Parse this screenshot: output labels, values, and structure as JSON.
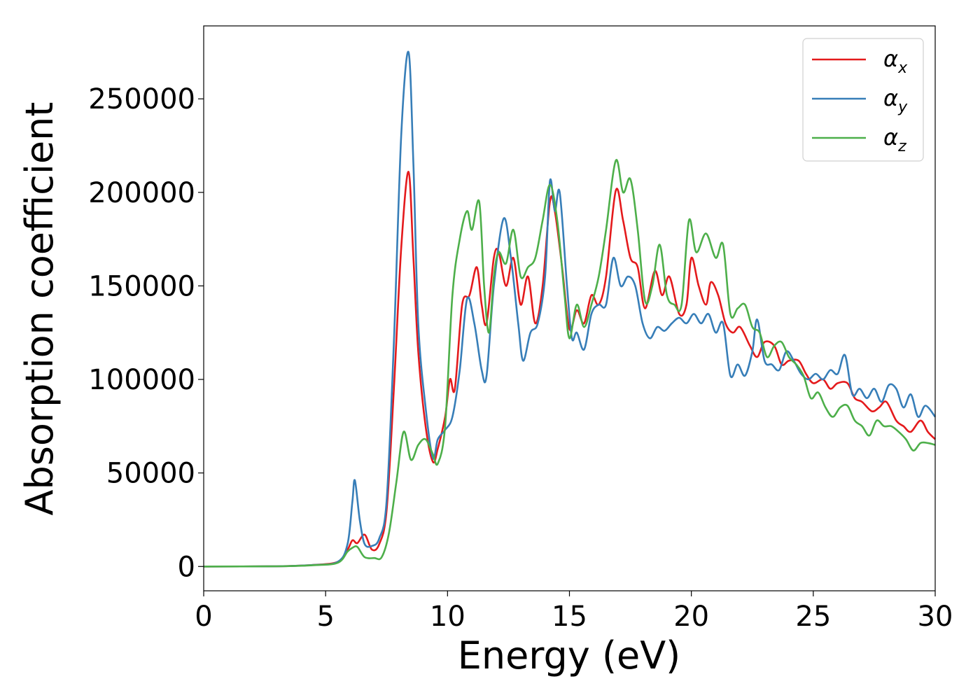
{
  "chart_data": {
    "type": "line",
    "title": "",
    "xlabel": "Energy (eV)",
    "ylabel": "Absorption coefficient",
    "xlim": [
      0,
      30
    ],
    "ylim": [
      -13000,
      289000
    ],
    "xticks": [
      0,
      5,
      10,
      15,
      20,
      25,
      30
    ],
    "yticks": [
      0,
      50000,
      100000,
      150000,
      200000,
      250000
    ],
    "ytick_labels": [
      "0",
      "50000",
      "100000",
      "150000",
      "200000",
      "250000"
    ],
    "xtick_labels": [
      "0",
      "5",
      "10",
      "15",
      "20",
      "25",
      "30"
    ],
    "grid": false,
    "legend_position": "top-right",
    "series": [
      {
        "name": "α",
        "subscript": "x",
        "color": "#e41a1c",
        "points": [
          [
            0,
            0
          ],
          [
            3,
            100
          ],
          [
            4.5,
            800
          ],
          [
            5.5,
            2500
          ],
          [
            5.9,
            9000
          ],
          [
            6.1,
            14000
          ],
          [
            6.3,
            12500
          ],
          [
            6.6,
            17000
          ],
          [
            6.9,
            9000
          ],
          [
            7.2,
            12000
          ],
          [
            7.5,
            30000
          ],
          [
            7.8,
            95000
          ],
          [
            8.1,
            170000
          ],
          [
            8.4,
            211000
          ],
          [
            8.6,
            165000
          ],
          [
            8.8,
            115000
          ],
          [
            9.1,
            75000
          ],
          [
            9.4,
            56000
          ],
          [
            9.6,
            63000
          ],
          [
            9.9,
            80000
          ],
          [
            10.1,
            100000
          ],
          [
            10.3,
            95000
          ],
          [
            10.6,
            140000
          ],
          [
            10.9,
            145000
          ],
          [
            11.2,
            160000
          ],
          [
            11.4,
            140000
          ],
          [
            11.6,
            130000
          ],
          [
            11.9,
            165000
          ],
          [
            12.1,
            168000
          ],
          [
            12.4,
            150000
          ],
          [
            12.7,
            165000
          ],
          [
            13.0,
            140000
          ],
          [
            13.3,
            155000
          ],
          [
            13.6,
            130000
          ],
          [
            13.9,
            150000
          ],
          [
            14.2,
            195000
          ],
          [
            14.4,
            190000
          ],
          [
            14.7,
            160000
          ],
          [
            15.0,
            127000
          ],
          [
            15.3,
            137000
          ],
          [
            15.6,
            130000
          ],
          [
            15.9,
            145000
          ],
          [
            16.2,
            140000
          ],
          [
            16.5,
            155000
          ],
          [
            16.9,
            201000
          ],
          [
            17.2,
            185000
          ],
          [
            17.5,
            165000
          ],
          [
            17.8,
            160000
          ],
          [
            18.1,
            138000
          ],
          [
            18.5,
            158000
          ],
          [
            18.8,
            145000
          ],
          [
            19.1,
            155000
          ],
          [
            19.5,
            135000
          ],
          [
            19.8,
            140000
          ],
          [
            20.0,
            165000
          ],
          [
            20.3,
            150000
          ],
          [
            20.6,
            140000
          ],
          [
            20.8,
            152000
          ],
          [
            21.1,
            145000
          ],
          [
            21.4,
            130000
          ],
          [
            21.7,
            125000
          ],
          [
            22.0,
            128000
          ],
          [
            22.4,
            118000
          ],
          [
            22.7,
            112000
          ],
          [
            23.0,
            120000
          ],
          [
            23.4,
            118000
          ],
          [
            23.7,
            108000
          ],
          [
            24.0,
            110000
          ],
          [
            24.4,
            110000
          ],
          [
            24.7,
            103000
          ],
          [
            25.0,
            98000
          ],
          [
            25.4,
            100000
          ],
          [
            25.7,
            95000
          ],
          [
            26.0,
            98000
          ],
          [
            26.4,
            98000
          ],
          [
            26.7,
            90000
          ],
          [
            27.0,
            88000
          ],
          [
            27.4,
            83000
          ],
          [
            27.7,
            85000
          ],
          [
            28.0,
            88000
          ],
          [
            28.4,
            78000
          ],
          [
            28.7,
            75000
          ],
          [
            29.0,
            72000
          ],
          [
            29.4,
            78000
          ],
          [
            29.7,
            72000
          ],
          [
            30,
            68000
          ]
        ]
      },
      {
        "name": "α",
        "subscript": "y",
        "color": "#377eb8",
        "points": [
          [
            0,
            0
          ],
          [
            3,
            100
          ],
          [
            4.5,
            800
          ],
          [
            5.5,
            2500
          ],
          [
            5.9,
            12000
          ],
          [
            6.1,
            35000
          ],
          [
            6.2,
            46000
          ],
          [
            6.4,
            25000
          ],
          [
            6.6,
            12000
          ],
          [
            6.9,
            11000
          ],
          [
            7.2,
            15000
          ],
          [
            7.5,
            35000
          ],
          [
            7.8,
            120000
          ],
          [
            8.1,
            230000
          ],
          [
            8.4,
            275000
          ],
          [
            8.6,
            215000
          ],
          [
            8.8,
            130000
          ],
          [
            9.1,
            85000
          ],
          [
            9.4,
            58000
          ],
          [
            9.6,
            68000
          ],
          [
            9.9,
            73000
          ],
          [
            10.2,
            80000
          ],
          [
            10.5,
            105000
          ],
          [
            10.8,
            143000
          ],
          [
            11.1,
            130000
          ],
          [
            11.4,
            105000
          ],
          [
            11.6,
            102000
          ],
          [
            11.9,
            150000
          ],
          [
            12.3,
            186000
          ],
          [
            12.6,
            165000
          ],
          [
            12.9,
            130000
          ],
          [
            13.1,
            110000
          ],
          [
            13.4,
            125000
          ],
          [
            13.7,
            130000
          ],
          [
            14.0,
            155000
          ],
          [
            14.2,
            206000
          ],
          [
            14.4,
            190000
          ],
          [
            14.6,
            200000
          ],
          [
            14.9,
            150000
          ],
          [
            15.1,
            122000
          ],
          [
            15.3,
            125000
          ],
          [
            15.6,
            116000
          ],
          [
            15.9,
            135000
          ],
          [
            16.2,
            140000
          ],
          [
            16.5,
            140000
          ],
          [
            16.8,
            165000
          ],
          [
            17.1,
            150000
          ],
          [
            17.4,
            155000
          ],
          [
            17.7,
            150000
          ],
          [
            18.0,
            130000
          ],
          [
            18.3,
            122000
          ],
          [
            18.6,
            128000
          ],
          [
            18.9,
            126000
          ],
          [
            19.2,
            130000
          ],
          [
            19.5,
            133000
          ],
          [
            19.8,
            130000
          ],
          [
            20.1,
            135000
          ],
          [
            20.4,
            130000
          ],
          [
            20.7,
            135000
          ],
          [
            21.0,
            125000
          ],
          [
            21.3,
            130000
          ],
          [
            21.6,
            102000
          ],
          [
            21.9,
            108000
          ],
          [
            22.2,
            102000
          ],
          [
            22.5,
            115000
          ],
          [
            22.7,
            132000
          ],
          [
            23.0,
            110000
          ],
          [
            23.3,
            108000
          ],
          [
            23.6,
            105000
          ],
          [
            23.9,
            115000
          ],
          [
            24.2,
            110000
          ],
          [
            24.5,
            103000
          ],
          [
            24.8,
            100000
          ],
          [
            25.1,
            103000
          ],
          [
            25.4,
            100000
          ],
          [
            25.7,
            105000
          ],
          [
            26.0,
            103000
          ],
          [
            26.3,
            113000
          ],
          [
            26.6,
            92000
          ],
          [
            26.9,
            95000
          ],
          [
            27.2,
            90000
          ],
          [
            27.5,
            95000
          ],
          [
            27.8,
            88000
          ],
          [
            28.1,
            97000
          ],
          [
            28.4,
            95000
          ],
          [
            28.7,
            85000
          ],
          [
            29.0,
            92000
          ],
          [
            29.3,
            80000
          ],
          [
            29.6,
            86000
          ],
          [
            30,
            80000
          ]
        ]
      },
      {
        "name": "α",
        "subscript": "z",
        "color": "#4daf4a",
        "points": [
          [
            0,
            0
          ],
          [
            3,
            100
          ],
          [
            4.5,
            700
          ],
          [
            5.5,
            2000
          ],
          [
            5.9,
            8000
          ],
          [
            6.1,
            10000
          ],
          [
            6.3,
            10500
          ],
          [
            6.6,
            5000
          ],
          [
            7.0,
            4500
          ],
          [
            7.3,
            5000
          ],
          [
            7.6,
            18000
          ],
          [
            7.9,
            45000
          ],
          [
            8.2,
            72000
          ],
          [
            8.5,
            57000
          ],
          [
            8.8,
            65000
          ],
          [
            9.1,
            68000
          ],
          [
            9.4,
            60000
          ],
          [
            9.6,
            55000
          ],
          [
            9.9,
            75000
          ],
          [
            10.2,
            145000
          ],
          [
            10.5,
            175000
          ],
          [
            10.8,
            190000
          ],
          [
            11.0,
            180000
          ],
          [
            11.3,
            195000
          ],
          [
            11.5,
            150000
          ],
          [
            11.7,
            125000
          ],
          [
            11.9,
            155000
          ],
          [
            12.1,
            168000
          ],
          [
            12.4,
            162000
          ],
          [
            12.7,
            180000
          ],
          [
            13.0,
            155000
          ],
          [
            13.3,
            160000
          ],
          [
            13.6,
            165000
          ],
          [
            13.9,
            185000
          ],
          [
            14.2,
            204000
          ],
          [
            14.5,
            185000
          ],
          [
            14.8,
            145000
          ],
          [
            15.0,
            122000
          ],
          [
            15.3,
            140000
          ],
          [
            15.6,
            128000
          ],
          [
            15.9,
            140000
          ],
          [
            16.2,
            155000
          ],
          [
            16.5,
            180000
          ],
          [
            16.9,
            217000
          ],
          [
            17.2,
            200000
          ],
          [
            17.5,
            207000
          ],
          [
            17.8,
            180000
          ],
          [
            18.1,
            142000
          ],
          [
            18.4,
            150000
          ],
          [
            18.7,
            172000
          ],
          [
            19.0,
            145000
          ],
          [
            19.3,
            140000
          ],
          [
            19.6,
            140000
          ],
          [
            19.9,
            185000
          ],
          [
            20.2,
            168000
          ],
          [
            20.6,
            178000
          ],
          [
            21.0,
            165000
          ],
          [
            21.3,
            172000
          ],
          [
            21.6,
            135000
          ],
          [
            21.9,
            138000
          ],
          [
            22.2,
            140000
          ],
          [
            22.5,
            128000
          ],
          [
            22.8,
            125000
          ],
          [
            23.1,
            112000
          ],
          [
            23.4,
            118000
          ],
          [
            23.7,
            120000
          ],
          [
            24.0,
            112000
          ],
          [
            24.3,
            108000
          ],
          [
            24.6,
            102000
          ],
          [
            24.9,
            90000
          ],
          [
            25.2,
            93000
          ],
          [
            25.5,
            85000
          ],
          [
            25.8,
            80000
          ],
          [
            26.1,
            85000
          ],
          [
            26.4,
            86000
          ],
          [
            26.7,
            78000
          ],
          [
            27.0,
            75000
          ],
          [
            27.3,
            70000
          ],
          [
            27.6,
            78000
          ],
          [
            27.9,
            75000
          ],
          [
            28.2,
            75000
          ],
          [
            28.5,
            72000
          ],
          [
            28.8,
            68000
          ],
          [
            29.1,
            62000
          ],
          [
            29.4,
            66000
          ],
          [
            29.7,
            66000
          ],
          [
            30,
            65000
          ]
        ]
      }
    ]
  }
}
